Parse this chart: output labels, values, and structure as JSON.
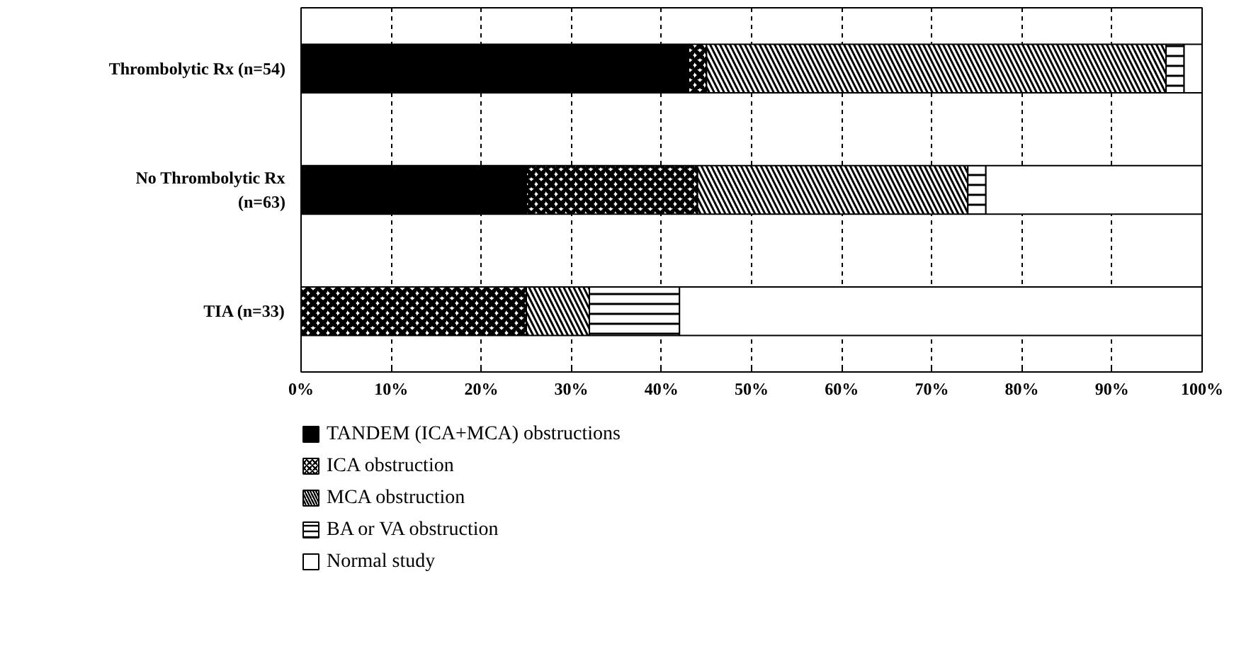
{
  "chart_data": {
    "type": "bar",
    "orientation": "horizontal",
    "stacked": true,
    "categories": [
      "Thrombolytic Rx (n=54)",
      "No Thrombolytic Rx (n=63)",
      "TIA (n=33)"
    ],
    "series": [
      {
        "name": "TANDEM (ICA+MCA) obstructions",
        "color": "#000000",
        "values": [
          43,
          25,
          0
        ]
      },
      {
        "name": "ICA obstruction",
        "color": "#ffffff",
        "values": [
          2,
          19,
          25
        ]
      },
      {
        "name": "MCA obstruction",
        "color": "#ffffff",
        "values": [
          51,
          30,
          7
        ]
      },
      {
        "name": "BA or VA obstruction",
        "color": "#ffffff",
        "values": [
          2,
          2,
          10
        ]
      },
      {
        "name": "Normal study",
        "color": "#ffffff",
        "values": [
          2,
          24,
          58
        ]
      }
    ],
    "xlim": [
      0,
      100
    ],
    "xticks": [
      {
        "value": 0,
        "label": "0%"
      },
      {
        "value": 10,
        "label": "10%"
      },
      {
        "value": 20,
        "label": "20%"
      },
      {
        "value": 30,
        "label": "30%"
      },
      {
        "value": 40,
        "label": "40%"
      },
      {
        "value": 50,
        "label": "50%"
      },
      {
        "value": 60,
        "label": "60%"
      },
      {
        "value": 70,
        "label": "70%"
      },
      {
        "value": 80,
        "label": "80%"
      },
      {
        "value": 90,
        "label": "90%"
      },
      {
        "value": 100,
        "label": "100%"
      }
    ],
    "grid": "x",
    "legend": "bottom"
  }
}
